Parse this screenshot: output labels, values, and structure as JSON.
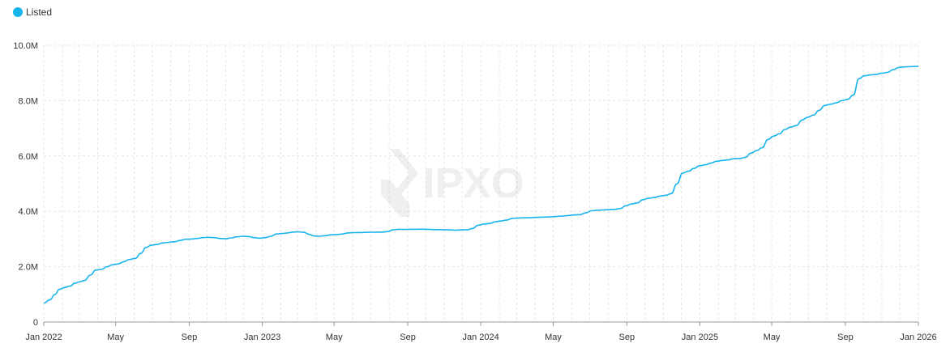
{
  "legend": {
    "label": "Listed",
    "color": "#18b4ee"
  },
  "watermark": {
    "text": "IPXO",
    "icon": "ipxo-logo-icon"
  },
  "chart_data": {
    "type": "line",
    "x_start": "2022-01-01",
    "x_end": "2026-01-01",
    "x_ticks": [
      {
        "date": "2022-01-01",
        "label": "Jan 2022"
      },
      {
        "date": "2022-05-01",
        "label": "May"
      },
      {
        "date": "2022-09-01",
        "label": "Sep"
      },
      {
        "date": "2023-01-01",
        "label": "Jan 2023"
      },
      {
        "date": "2023-05-01",
        "label": "May"
      },
      {
        "date": "2023-09-01",
        "label": "Sep"
      },
      {
        "date": "2024-01-01",
        "label": "Jan 2024"
      },
      {
        "date": "2024-05-01",
        "label": "May"
      },
      {
        "date": "2024-09-01",
        "label": "Sep"
      },
      {
        "date": "2025-01-01",
        "label": "Jan 2025"
      },
      {
        "date": "2025-05-01",
        "label": "May"
      },
      {
        "date": "2025-09-01",
        "label": "Sep"
      },
      {
        "date": "2026-01-01",
        "label": "Jan 2026"
      }
    ],
    "y_ticks": [
      {
        "value": 0,
        "label": "0"
      },
      {
        "value": 2000000,
        "label": "2.0M"
      },
      {
        "value": 4000000,
        "label": "4.0M"
      },
      {
        "value": 6000000,
        "label": "6.0M"
      },
      {
        "value": 8000000,
        "label": "8.0M"
      },
      {
        "value": 10000000,
        "label": "10.0M"
      }
    ],
    "ylim": [
      0,
      10000000
    ],
    "grid": true,
    "series": [
      {
        "name": "Listed",
        "color": "#18b4ee",
        "points": [
          [
            "2022-01-01",
            680000
          ],
          [
            "2022-01-11",
            800000
          ],
          [
            "2022-01-20",
            1000000
          ],
          [
            "2022-01-27",
            1180000
          ],
          [
            "2022-02-05",
            1250000
          ],
          [
            "2022-02-14",
            1300000
          ],
          [
            "2022-02-22",
            1400000
          ],
          [
            "2022-03-01",
            1450000
          ],
          [
            "2022-03-10",
            1500000
          ],
          [
            "2022-03-20",
            1700000
          ],
          [
            "2022-03-29",
            1880000
          ],
          [
            "2022-04-07",
            1900000
          ],
          [
            "2022-04-17",
            2000000
          ],
          [
            "2022-04-26",
            2070000
          ],
          [
            "2022-05-05",
            2100000
          ],
          [
            "2022-05-15",
            2180000
          ],
          [
            "2022-05-24",
            2260000
          ],
          [
            "2022-06-03",
            2300000
          ],
          [
            "2022-06-12",
            2480000
          ],
          [
            "2022-06-21",
            2700000
          ],
          [
            "2022-06-30",
            2780000
          ],
          [
            "2022-07-09",
            2800000
          ],
          [
            "2022-07-19",
            2860000
          ],
          [
            "2022-07-28",
            2880000
          ],
          [
            "2022-08-07",
            2900000
          ],
          [
            "2022-08-17",
            2950000
          ],
          [
            "2022-08-26",
            2990000
          ],
          [
            "2022-09-05",
            3000000
          ],
          [
            "2022-09-14",
            3020000
          ],
          [
            "2022-09-24",
            3050000
          ],
          [
            "2022-10-03",
            3060000
          ],
          [
            "2022-10-13",
            3050000
          ],
          [
            "2022-10-22",
            3020000
          ],
          [
            "2022-11-01",
            3010000
          ],
          [
            "2022-11-10",
            3040000
          ],
          [
            "2022-11-20",
            3080000
          ],
          [
            "2022-11-29",
            3100000
          ],
          [
            "2022-12-09",
            3090000
          ],
          [
            "2022-12-18",
            3050000
          ],
          [
            "2022-12-28",
            3030000
          ],
          [
            "2023-01-06",
            3050000
          ],
          [
            "2023-01-15",
            3100000
          ],
          [
            "2023-01-25",
            3180000
          ],
          [
            "2023-02-03",
            3200000
          ],
          [
            "2023-02-12",
            3220000
          ],
          [
            "2023-02-21",
            3250000
          ],
          [
            "2023-03-02",
            3260000
          ],
          [
            "2023-03-12",
            3240000
          ],
          [
            "2023-03-20",
            3170000
          ],
          [
            "2023-03-28",
            3110000
          ],
          [
            "2023-04-06",
            3100000
          ],
          [
            "2023-04-16",
            3120000
          ],
          [
            "2023-04-25",
            3150000
          ],
          [
            "2023-05-05",
            3160000
          ],
          [
            "2023-05-15",
            3180000
          ],
          [
            "2023-05-24",
            3220000
          ],
          [
            "2023-06-03",
            3230000
          ],
          [
            "2023-06-12",
            3235000
          ],
          [
            "2023-06-22",
            3240000
          ],
          [
            "2023-07-01",
            3245000
          ],
          [
            "2023-07-11",
            3245000
          ],
          [
            "2023-07-20",
            3250000
          ],
          [
            "2023-07-30",
            3270000
          ],
          [
            "2023-08-07",
            3330000
          ],
          [
            "2023-08-17",
            3350000
          ],
          [
            "2023-08-26",
            3345000
          ],
          [
            "2023-09-05",
            3350000
          ],
          [
            "2023-09-14",
            3350000
          ],
          [
            "2023-09-24",
            3355000
          ],
          [
            "2023-10-03",
            3350000
          ],
          [
            "2023-10-13",
            3340000
          ],
          [
            "2023-10-22",
            3340000
          ],
          [
            "2023-11-01",
            3335000
          ],
          [
            "2023-11-10",
            3330000
          ],
          [
            "2023-11-20",
            3320000
          ],
          [
            "2023-11-29",
            3330000
          ],
          [
            "2023-12-09",
            3330000
          ],
          [
            "2023-12-18",
            3380000
          ],
          [
            "2023-12-28",
            3500000
          ],
          [
            "2024-01-06",
            3540000
          ],
          [
            "2024-01-16",
            3560000
          ],
          [
            "2024-01-25",
            3620000
          ],
          [
            "2024-02-03",
            3650000
          ],
          [
            "2024-02-13",
            3680000
          ],
          [
            "2024-02-22",
            3740000
          ],
          [
            "2024-03-03",
            3760000
          ],
          [
            "2024-03-12",
            3765000
          ],
          [
            "2024-03-22",
            3770000
          ],
          [
            "2024-03-31",
            3780000
          ],
          [
            "2024-04-10",
            3790000
          ],
          [
            "2024-04-19",
            3795000
          ],
          [
            "2024-04-29",
            3800000
          ],
          [
            "2024-05-08",
            3820000
          ],
          [
            "2024-05-18",
            3830000
          ],
          [
            "2024-05-27",
            3850000
          ],
          [
            "2024-06-06",
            3870000
          ],
          [
            "2024-06-15",
            3880000
          ],
          [
            "2024-06-25",
            3950000
          ],
          [
            "2024-07-04",
            4020000
          ],
          [
            "2024-07-14",
            4040000
          ],
          [
            "2024-07-23",
            4050000
          ],
          [
            "2024-08-02",
            4060000
          ],
          [
            "2024-08-11",
            4070000
          ],
          [
            "2024-08-21",
            4100000
          ],
          [
            "2024-08-30",
            4200000
          ],
          [
            "2024-09-09",
            4270000
          ],
          [
            "2024-09-18",
            4300000
          ],
          [
            "2024-09-28",
            4420000
          ],
          [
            "2024-10-07",
            4470000
          ],
          [
            "2024-10-17",
            4500000
          ],
          [
            "2024-10-26",
            4550000
          ],
          [
            "2024-11-05",
            4580000
          ],
          [
            "2024-11-14",
            4640000
          ],
          [
            "2024-11-24",
            5000000
          ],
          [
            "2024-12-03",
            5380000
          ],
          [
            "2024-12-13",
            5450000
          ],
          [
            "2024-12-22",
            5550000
          ],
          [
            "2025-01-01",
            5650000
          ],
          [
            "2025-01-10",
            5680000
          ],
          [
            "2025-01-20",
            5750000
          ],
          [
            "2025-01-29",
            5810000
          ],
          [
            "2025-02-08",
            5840000
          ],
          [
            "2025-02-17",
            5860000
          ],
          [
            "2025-02-27",
            5900000
          ],
          [
            "2025-03-08",
            5910000
          ],
          [
            "2025-03-18",
            5950000
          ],
          [
            "2025-03-27",
            6100000
          ],
          [
            "2025-04-06",
            6200000
          ],
          [
            "2025-04-15",
            6300000
          ],
          [
            "2025-04-25",
            6600000
          ],
          [
            "2025-05-04",
            6720000
          ],
          [
            "2025-05-14",
            6800000
          ],
          [
            "2025-05-23",
            6960000
          ],
          [
            "2025-06-02",
            7050000
          ],
          [
            "2025-06-11",
            7100000
          ],
          [
            "2025-06-21",
            7300000
          ],
          [
            "2025-06-30",
            7400000
          ],
          [
            "2025-07-10",
            7480000
          ],
          [
            "2025-07-19",
            7650000
          ],
          [
            "2025-07-29",
            7830000
          ],
          [
            "2025-08-07",
            7870000
          ],
          [
            "2025-08-17",
            7920000
          ],
          [
            "2025-08-26",
            8000000
          ],
          [
            "2025-09-05",
            8050000
          ],
          [
            "2025-09-14",
            8200000
          ],
          [
            "2025-09-24",
            8800000
          ],
          [
            "2025-10-03",
            8900000
          ],
          [
            "2025-10-13",
            8930000
          ],
          [
            "2025-10-22",
            8950000
          ],
          [
            "2025-11-01",
            8990000
          ],
          [
            "2025-11-10",
            9020000
          ],
          [
            "2025-11-20",
            9120000
          ],
          [
            "2025-11-29",
            9200000
          ],
          [
            "2025-12-09",
            9220000
          ],
          [
            "2025-12-18",
            9230000
          ],
          [
            "2026-01-01",
            9240000
          ]
        ]
      }
    ]
  }
}
